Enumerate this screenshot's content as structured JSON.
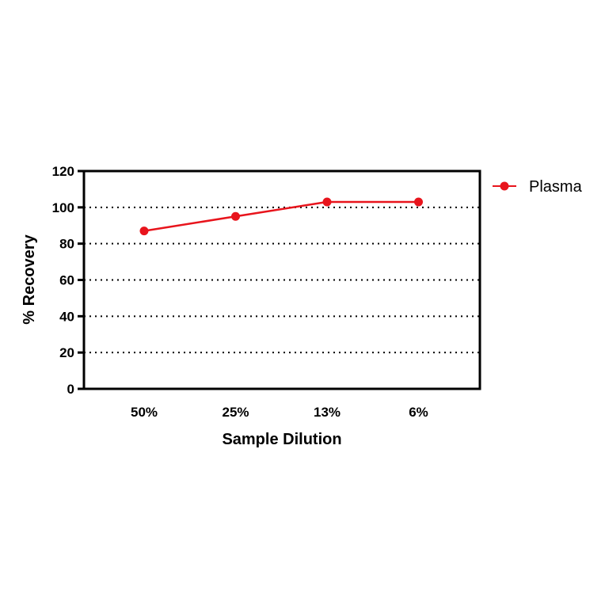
{
  "chart_data": {
    "type": "line",
    "title": "",
    "xlabel": "Sample Dilution",
    "ylabel": "% Recovery",
    "categories": [
      "50%",
      "25%",
      "13%",
      "6%"
    ],
    "yticks": [
      "0",
      "20",
      "40",
      "60",
      "80",
      "100",
      "120"
    ],
    "ylim": [
      0,
      120
    ],
    "grid": "horizontal dotted lines at 20, 40, 60, 80, 100",
    "legend_position": "right",
    "series": [
      {
        "name": "Plasma",
        "color": "#e8141c",
        "values": [
          87,
          95,
          103,
          103
        ]
      }
    ]
  }
}
